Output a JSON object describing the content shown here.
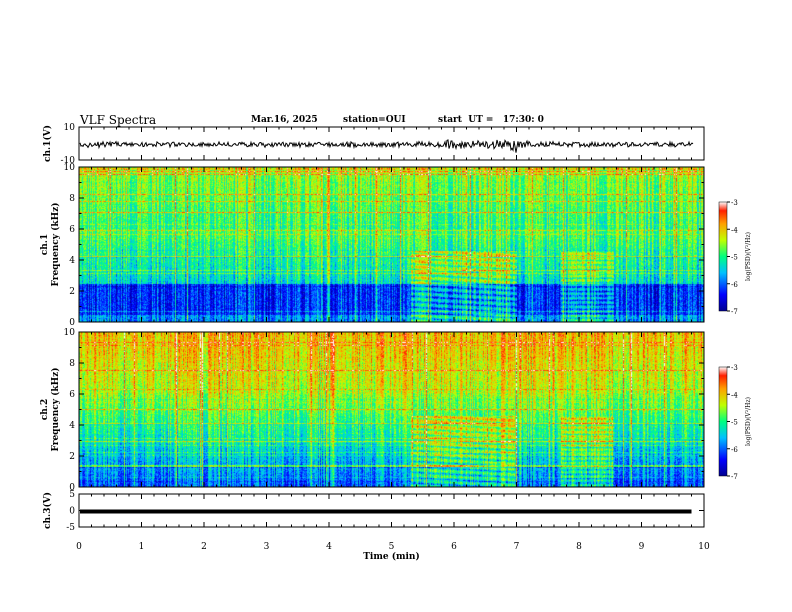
{
  "header": {
    "title": "VLF Spectra",
    "date": "Mar.16, 2025",
    "station": "station=OUI",
    "start": "start  UT =   17:30: 0"
  },
  "chart_data": [
    {
      "id": "ch1-waveform",
      "type": "line",
      "ylabel": "ch.1(V)",
      "ylim": [
        -10,
        10
      ],
      "yticks": [
        "10",
        "-10"
      ],
      "xlim": [
        0,
        10
      ],
      "description_only_trace": "noisy waveform around 0 V with burst near 7 min"
    },
    {
      "id": "ch1-spectrogram",
      "type": "heatmap",
      "ylabel_top": "ch.1",
      "ylabel": "Frequency (kHz)",
      "ylim": [
        0,
        10
      ],
      "yticks": [
        "0",
        "2",
        "4",
        "6",
        "8",
        "10"
      ],
      "xlim": [
        0,
        10
      ],
      "colorbar": {
        "label": "log(PSD)(V²/Hz)",
        "range": [
          -7,
          -3
        ],
        "ticks": [
          "-3",
          "-4",
          "-5",
          "-6",
          "-7"
        ]
      }
    },
    {
      "id": "ch2-spectrogram",
      "type": "heatmap",
      "ylabel_top": "ch.2",
      "ylabel": "Frequency (kHz)",
      "ylim": [
        0,
        10
      ],
      "yticks": [
        "0",
        "2",
        "4",
        "6",
        "8",
        "10"
      ],
      "xlim": [
        0,
        10
      ],
      "colorbar": {
        "label": "log(PSD)(V²/Hz)",
        "range": [
          -7,
          -3
        ],
        "ticks": [
          "-3",
          "-4",
          "-5",
          "-6",
          "-7"
        ]
      }
    },
    {
      "id": "ch3-waveform",
      "type": "line",
      "ylabel": "ch.3(V)",
      "ylim": [
        -5,
        5
      ],
      "yticks": [
        "5",
        "0",
        "-5"
      ],
      "xlim": [
        0,
        10
      ],
      "xlabel": "Time (min)",
      "xticks": [
        "0",
        "1",
        "2",
        "3",
        "4",
        "5",
        "6",
        "7",
        "8",
        "9",
        "10"
      ],
      "data_end_min": 9.8
    }
  ],
  "colors": {
    "low": "#000090",
    "mid": "#00ff80",
    "high": "#ff2000",
    "axis": "#000000"
  }
}
